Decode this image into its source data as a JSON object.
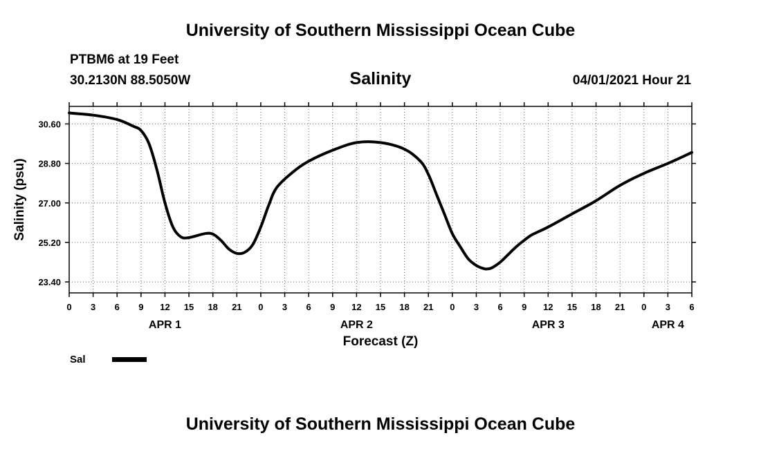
{
  "header": {
    "title": "University of Southern Mississippi Ocean Cube",
    "station": "PTBM6 at 19 Feet",
    "location": "30.2130N  88.5050W",
    "variable": "Salinity",
    "timestamp": "04/01/2021 Hour 21"
  },
  "footer": {
    "title": "University of Southern Mississippi Ocean Cube"
  },
  "legend": {
    "label": "Sal"
  },
  "chart_data": {
    "type": "line",
    "title": "Salinity",
    "xlabel": "Forecast (Z)",
    "ylabel": "Salinity (psu)",
    "xlim": [
      0,
      78
    ],
    "ylim": [
      22.9,
      31.4
    ],
    "grid": "dotted horizontal and vertical",
    "y_ticks": [
      "23.40",
      "25.20",
      "27.00",
      "28.80",
      "30.60"
    ],
    "x_tick_labels": [
      "0",
      "3",
      "6",
      "9",
      "12",
      "15",
      "18",
      "21",
      "0",
      "3",
      "6",
      "9",
      "12",
      "15",
      "18",
      "21",
      "0",
      "3",
      "6",
      "9",
      "12",
      "15",
      "18",
      "21",
      "0",
      "3",
      "6"
    ],
    "day_labels": [
      {
        "label": "APR 1",
        "hour": 12
      },
      {
        "label": "APR 2",
        "hour": 36
      },
      {
        "label": "APR 3",
        "hour": 60
      },
      {
        "label": "APR 4",
        "hour": 75
      }
    ],
    "series": [
      {
        "name": "Sal",
        "x": [
          0,
          3,
          6,
          8,
          9,
          10,
          11,
          12,
          13,
          14,
          15,
          17,
          18,
          19,
          20,
          21,
          22,
          23,
          24,
          25,
          26,
          28,
          30,
          33,
          36,
          39,
          42,
          44,
          45,
          46,
          47,
          48,
          49,
          50,
          51,
          52,
          52.5,
          53,
          54,
          55,
          56,
          57,
          58,
          60,
          63,
          66,
          69,
          72,
          75,
          78
        ],
        "y": [
          31.1,
          31.0,
          30.8,
          30.5,
          30.3,
          29.7,
          28.5,
          27.0,
          25.9,
          25.45,
          25.42,
          25.6,
          25.58,
          25.3,
          24.9,
          24.7,
          24.75,
          25.1,
          25.9,
          26.9,
          27.7,
          28.4,
          28.9,
          29.4,
          29.75,
          29.75,
          29.45,
          28.9,
          28.3,
          27.4,
          26.5,
          25.6,
          25.0,
          24.45,
          24.15,
          24.0,
          24.0,
          24.05,
          24.3,
          24.65,
          25.0,
          25.3,
          25.55,
          25.9,
          26.5,
          27.1,
          27.8,
          28.35,
          28.8,
          29.3
        ]
      }
    ]
  }
}
